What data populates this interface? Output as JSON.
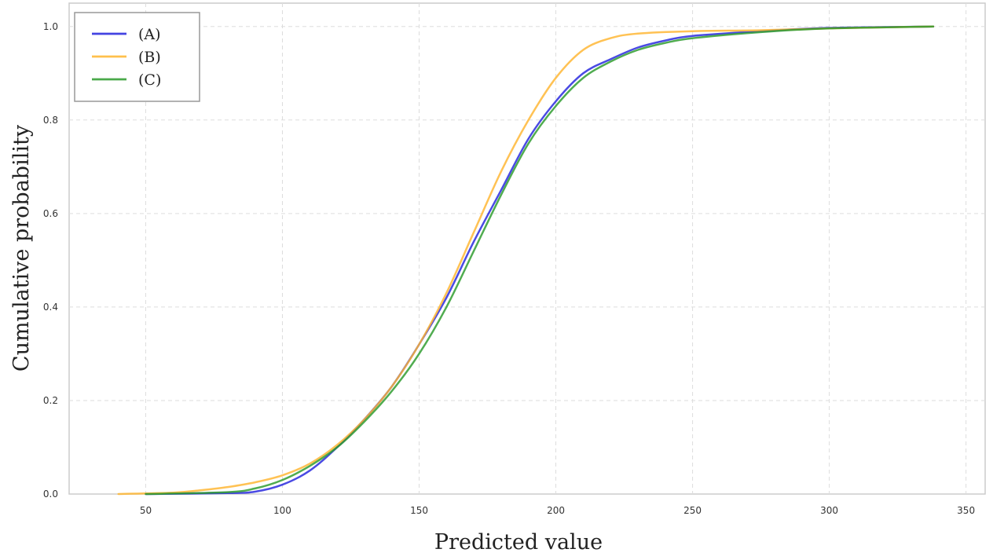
{
  "chart_data": {
    "type": "line",
    "title": "",
    "xlabel": "Predicted value",
    "ylabel": "Cumulative probability",
    "xlim": [
      22,
      357
    ],
    "ylim": [
      0,
      1.05
    ],
    "x_ticks": [
      50,
      100,
      150,
      200,
      250,
      300,
      350
    ],
    "y_ticks": [
      "0.0",
      "0.2",
      "0.4",
      "0.6",
      "0.8",
      "1.0"
    ],
    "grid": true,
    "legend_position": "top-left",
    "series": [
      {
        "name": "(A)",
        "color": "#2222dd",
        "points": [
          [
            50,
            0
          ],
          [
            80,
            0.002
          ],
          [
            90,
            0.005
          ],
          [
            100,
            0.02
          ],
          [
            110,
            0.05
          ],
          [
            120,
            0.1
          ],
          [
            130,
            0.16
          ],
          [
            140,
            0.23
          ],
          [
            150,
            0.32
          ],
          [
            160,
            0.42
          ],
          [
            170,
            0.54
          ],
          [
            180,
            0.65
          ],
          [
            190,
            0.76
          ],
          [
            200,
            0.84
          ],
          [
            210,
            0.9
          ],
          [
            220,
            0.93
          ],
          [
            230,
            0.955
          ],
          [
            240,
            0.97
          ],
          [
            250,
            0.98
          ],
          [
            275,
            0.99
          ],
          [
            300,
            0.997
          ],
          [
            338,
            1.0
          ]
        ]
      },
      {
        "name": "(B)",
        "color": "#ffb52e",
        "points": [
          [
            40,
            0
          ],
          [
            60,
            0.003
          ],
          [
            70,
            0.008
          ],
          [
            80,
            0.015
          ],
          [
            90,
            0.025
          ],
          [
            100,
            0.04
          ],
          [
            110,
            0.065
          ],
          [
            120,
            0.105
          ],
          [
            130,
            0.16
          ],
          [
            140,
            0.23
          ],
          [
            150,
            0.32
          ],
          [
            160,
            0.43
          ],
          [
            170,
            0.56
          ],
          [
            180,
            0.69
          ],
          [
            190,
            0.8
          ],
          [
            200,
            0.89
          ],
          [
            210,
            0.95
          ],
          [
            220,
            0.975
          ],
          [
            230,
            0.985
          ],
          [
            250,
            0.99
          ],
          [
            275,
            0.992
          ],
          [
            300,
            0.996
          ],
          [
            338,
            1.0
          ]
        ]
      },
      {
        "name": "(C)",
        "color": "#2a9a2a",
        "points": [
          [
            50,
            0
          ],
          [
            80,
            0.004
          ],
          [
            90,
            0.012
          ],
          [
            100,
            0.03
          ],
          [
            110,
            0.06
          ],
          [
            120,
            0.1
          ],
          [
            130,
            0.155
          ],
          [
            140,
            0.22
          ],
          [
            150,
            0.3
          ],
          [
            160,
            0.4
          ],
          [
            170,
            0.52
          ],
          [
            180,
            0.64
          ],
          [
            190,
            0.75
          ],
          [
            200,
            0.83
          ],
          [
            210,
            0.89
          ],
          [
            220,
            0.925
          ],
          [
            230,
            0.95
          ],
          [
            240,
            0.965
          ],
          [
            250,
            0.975
          ],
          [
            275,
            0.988
          ],
          [
            300,
            0.996
          ],
          [
            338,
            1.0
          ]
        ]
      }
    ]
  }
}
